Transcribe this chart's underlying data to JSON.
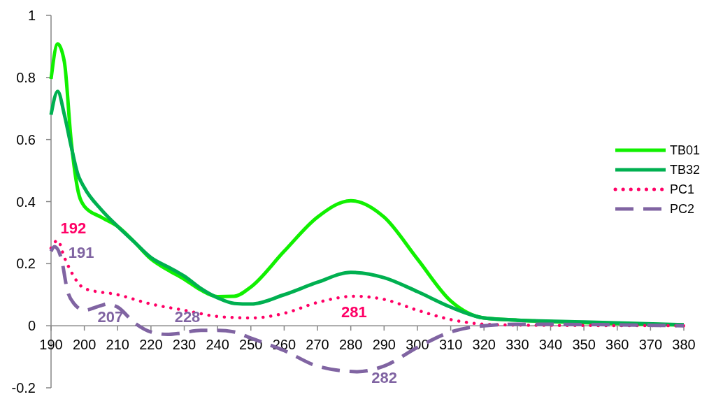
{
  "chart_data": {
    "type": "line",
    "x": [
      190,
      192,
      194,
      196,
      198,
      200,
      205,
      210,
      215,
      220,
      225,
      230,
      235,
      240,
      245,
      250,
      260,
      270,
      280,
      290,
      300,
      310,
      320,
      330,
      350,
      380
    ],
    "series": [
      {
        "name": "TB01",
        "color": "#11f000",
        "values": [
          0.795,
          0.908,
          0.85,
          0.6,
          0.44,
          0.385,
          0.35,
          0.32,
          0.27,
          0.215,
          0.18,
          0.15,
          0.115,
          0.094,
          0.095,
          0.125,
          0.24,
          0.35,
          0.403,
          0.35,
          0.215,
          0.08,
          0.025,
          0.018,
          0.01,
          0.002
        ]
      },
      {
        "name": "TB32",
        "color": "#00b050",
        "values": [
          0.68,
          0.755,
          0.68,
          0.58,
          0.49,
          0.445,
          0.375,
          0.32,
          0.27,
          0.22,
          0.19,
          0.16,
          0.12,
          0.09,
          0.072,
          0.07,
          0.1,
          0.14,
          0.172,
          0.155,
          0.11,
          0.06,
          0.025,
          0.018,
          0.012,
          0.003
        ]
      },
      {
        "name": "PC1",
        "color": "#ff0066",
        "line_style": "dotted",
        "x": [
          190,
          192,
          194,
          196,
          198,
          200,
          210,
          220,
          230,
          240,
          250,
          260,
          270,
          281,
          290,
          300,
          310,
          320,
          330,
          380
        ],
        "values": [
          0.25,
          0.275,
          0.22,
          0.175,
          0.14,
          0.12,
          0.1,
          0.07,
          0.05,
          0.03,
          0.025,
          0.04,
          0.075,
          0.095,
          0.085,
          0.05,
          0.02,
          0.005,
          0.002,
          0
        ]
      },
      {
        "name": "PC2",
        "color": "#8064a2",
        "line_style": "dashed",
        "x": [
          190,
          191,
          193,
          195,
          197,
          200,
          205,
          207,
          210,
          215,
          220,
          225,
          228,
          235,
          240,
          245,
          250,
          260,
          270,
          282,
          290,
          300,
          310,
          320,
          330,
          380
        ],
        "values": [
          0.24,
          0.255,
          0.22,
          0.11,
          0.07,
          0.05,
          0.065,
          0.07,
          0.06,
          0.01,
          -0.02,
          -0.028,
          -0.025,
          -0.015,
          -0.015,
          -0.02,
          -0.04,
          -0.08,
          -0.13,
          -0.148,
          -0.13,
          -0.07,
          -0.02,
          0,
          0.005,
          0
        ]
      }
    ],
    "xlim": [
      190,
      380
    ],
    "xticks": [
      190,
      200,
      210,
      220,
      230,
      240,
      250,
      260,
      270,
      280,
      290,
      300,
      310,
      320,
      330,
      340,
      350,
      360,
      370,
      380
    ],
    "ylim": [
      -0.2,
      1
    ],
    "yticks": [
      -0.2,
      0,
      0.2,
      0.4,
      0.6,
      0.8,
      1
    ],
    "legend": "right",
    "line_style": "solid",
    "marker": "none",
    "grid": false,
    "annotations": [
      {
        "text": "192",
        "x": 192,
        "y": 0.275
      },
      {
        "text": "191",
        "x": 191,
        "y": 0.255
      },
      {
        "text": "207",
        "x": 207,
        "y": 0.07
      },
      {
        "text": "228",
        "x": 228,
        "y": -0.025
      },
      {
        "text": "281",
        "x": 281,
        "y": 0.095
      },
      {
        "text": "282",
        "x": 282,
        "y": -0.148
      }
    ]
  }
}
